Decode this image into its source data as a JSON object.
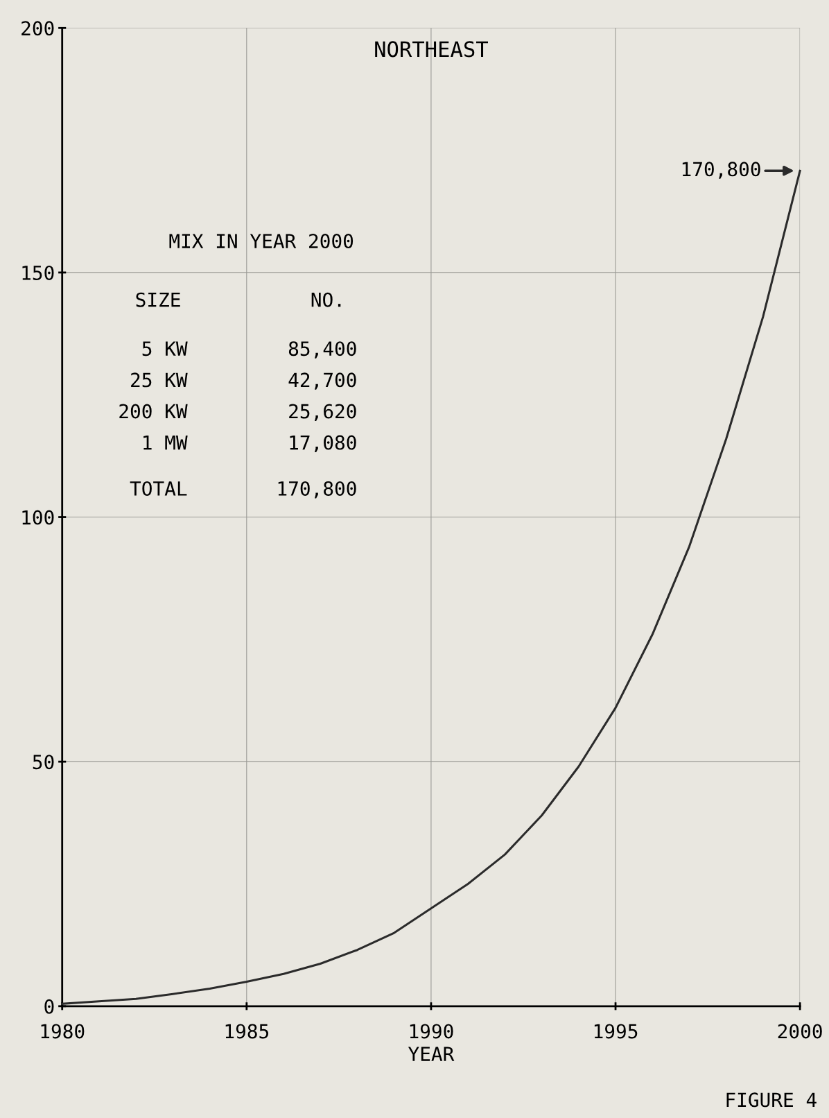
{
  "chart_data": {
    "type": "line",
    "title": "NORTHEAST",
    "xlabel": "YEAR",
    "x": [
      1980,
      1981,
      1982,
      1983,
      1984,
      1985,
      1986,
      1987,
      1988,
      1989,
      1990,
      1991,
      1992,
      1993,
      1994,
      1995,
      1996,
      1997,
      1998,
      1999,
      2000
    ],
    "series": [
      {
        "color": "#2b2b2b",
        "values": [
          0.5,
          1,
          1.5,
          2.5,
          3.6,
          5,
          6.6,
          8.7,
          11.5,
          15,
          20,
          25,
          31,
          39,
          49,
          61,
          76,
          94,
          116,
          141,
          170.8
        ]
      }
    ],
    "xlim": [
      1980,
      2000
    ],
    "ylim": [
      0,
      200
    ],
    "xticks": [
      1980,
      1985,
      1990,
      1995,
      2000
    ],
    "yticks": [
      0,
      50,
      100,
      150,
      200
    ],
    "grid": true,
    "marker": "none",
    "line_style": "solid",
    "annotations": [
      {
        "text": "170,800",
        "x": 2000,
        "y": 170.8
      },
      "MIX IN YEAR 2000",
      "SIZE",
      "NO.",
      "5 KW",
      "85,400",
      "25 KW",
      "42,700",
      "200 KW",
      "25,620",
      "1 MW",
      "17,080",
      "TOTAL",
      "170,800",
      "FIGURE 4"
    ]
  }
}
